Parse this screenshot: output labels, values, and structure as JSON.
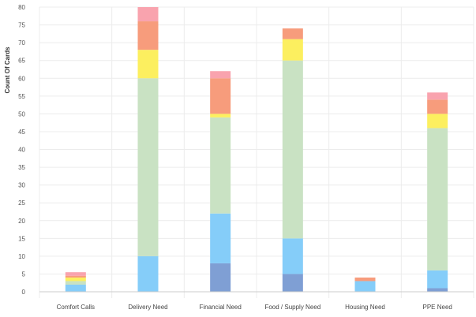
{
  "chart_data": {
    "type": "bar",
    "stacked": true,
    "title": "",
    "xlabel": "",
    "ylabel": "Count Of Cards",
    "ylim": [
      0,
      80
    ],
    "yticks": [
      0,
      5,
      10,
      15,
      20,
      25,
      30,
      35,
      40,
      45,
      50,
      55,
      60,
      65,
      70,
      75,
      80
    ],
    "grid": true,
    "legend": "none",
    "categories": [
      "Comfort Calls",
      "Delivery Need",
      "Financial Need",
      "Food / Supply Need",
      "Housing Need",
      "PPE Need"
    ],
    "series": [
      {
        "color": "#7f9fd4",
        "values": [
          0,
          0,
          8,
          5,
          0,
          1
        ]
      },
      {
        "color": "#85cdf9",
        "values": [
          2,
          10,
          14,
          10,
          3,
          5
        ]
      },
      {
        "color": "#c9e2c3",
        "values": [
          1,
          50,
          27,
          50,
          0,
          40
        ]
      },
      {
        "color": "#fcef5f",
        "values": [
          1,
          8,
          1,
          6,
          0,
          4
        ]
      },
      {
        "color": "#f79c7c",
        "values": [
          0.5,
          8,
          10,
          3,
          1,
          4
        ]
      },
      {
        "color": "#f9a3ae",
        "values": [
          1,
          4,
          2,
          0,
          0,
          2
        ]
      }
    ]
  }
}
